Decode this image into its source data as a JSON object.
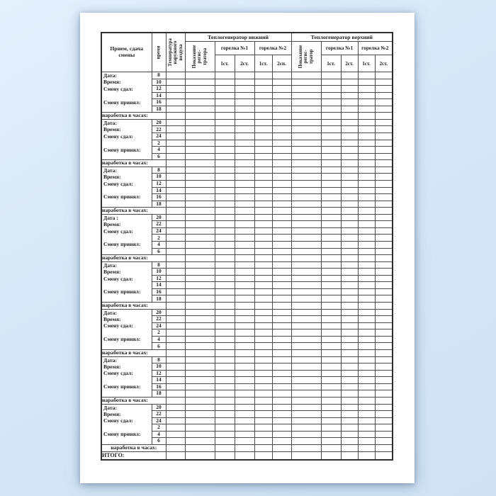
{
  "header": {
    "shift_col": "Прием, сдача\nсмены",
    "time_col": "время",
    "temp_col": "Температура\nнаружного\nвоздуха",
    "gen_lower": "Теплогенератор нижний",
    "gen_upper": "Теплогенератор верхний",
    "recorder_lower": "Показание\nрегис-\nтратора",
    "recorder_upper": "Показание\nрегис-\nтратор",
    "burner1": "горелка №1",
    "burner2": "горелка №2",
    "stages_lower": [
      "1ст.",
      "2ст.",
      "1ст.",
      "2сп."
    ],
    "stages_upper": [
      "1ст.",
      "2ст.",
      "1ст.",
      "2ст."
    ]
  },
  "row_labels": {
    "time": "Время:",
    "handed_over": "Смену сдал:",
    "accepted": "Смену принял:",
    "runtime_hours": "наработка в часах:",
    "total": "ИТОГО:"
  },
  "blocks": [
    {
      "date_label": "Дата:",
      "times": [
        "8",
        "10",
        "12",
        "14",
        "16",
        "18"
      ]
    },
    {
      "date_label": "Дата:",
      "times": [
        "20",
        "22",
        "24",
        "2",
        "4",
        "6"
      ]
    },
    {
      "date_label": "Дата:",
      "times": [
        "8",
        "10",
        "12",
        "14",
        "16",
        "18"
      ]
    },
    {
      "date_label": "Дата :",
      "times": [
        "20",
        "22",
        "24",
        "2",
        "4",
        "6"
      ]
    },
    {
      "date_label": "Дата:",
      "times": [
        "8",
        "10",
        "12",
        "14",
        "16",
        "18"
      ]
    },
    {
      "date_label": "Дата:",
      "times": [
        "20",
        "22",
        "24",
        "2",
        "4",
        "6"
      ]
    },
    {
      "date_label": "Дата:",
      "times": [
        "8",
        "10",
        "12",
        "14",
        "16",
        "18"
      ]
    },
    {
      "date_label": "Дата:",
      "times": [
        "20",
        "22",
        "24",
        "2",
        "4",
        "6"
      ]
    }
  ],
  "colors": {
    "background": "#d6e7f7",
    "page": "#ffffff",
    "grid": "#4a4a4a",
    "outer_border": "#2f2f2f",
    "text": "#1b1b1b"
  }
}
